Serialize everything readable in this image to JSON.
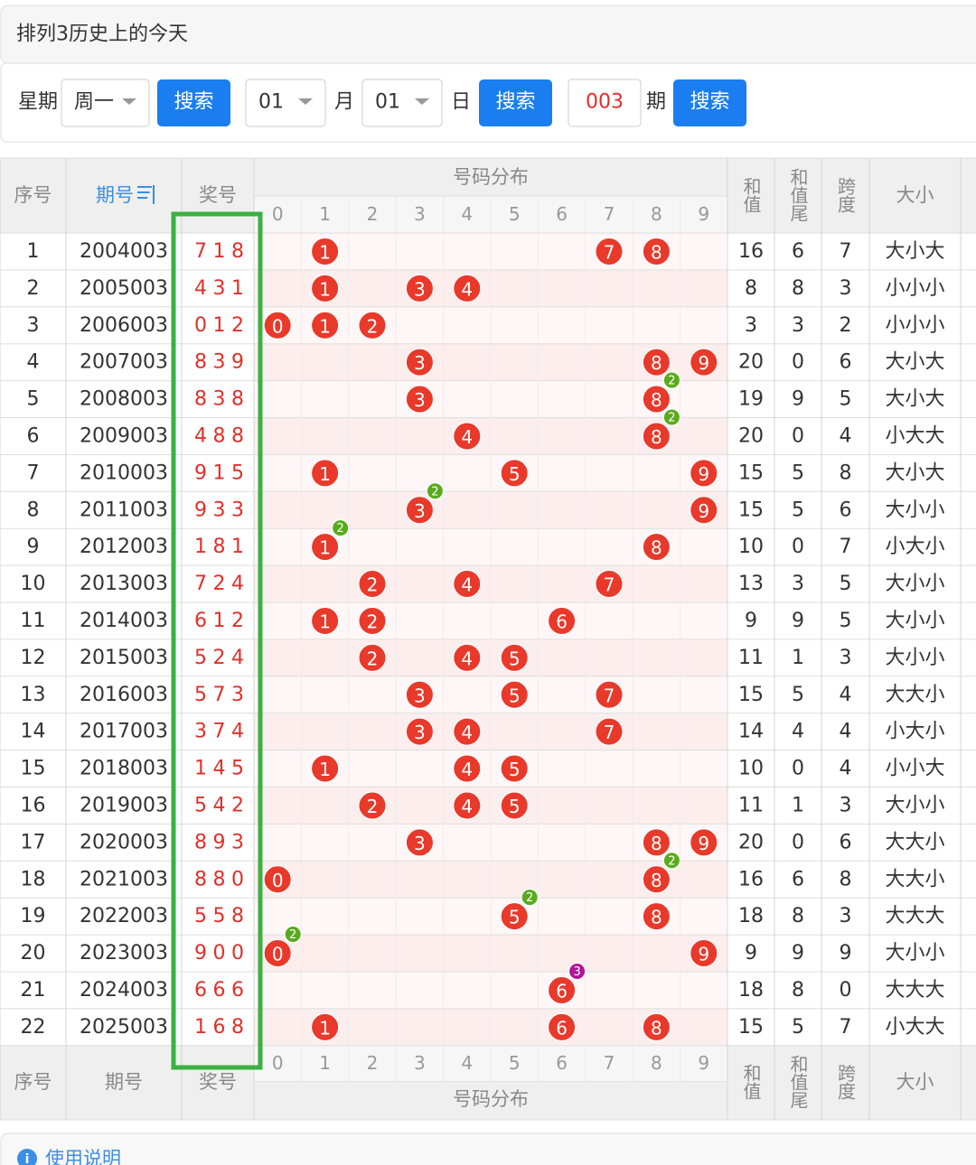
{
  "header": {
    "title": "排列3历史上的今天"
  },
  "search": {
    "weekday_label": "星期",
    "weekday": "周一",
    "month": "01",
    "month_label": "月",
    "day": "01",
    "day_label": "日",
    "issue": "003",
    "issue_label": "期",
    "buttons": [
      "搜索",
      "搜索",
      "搜索"
    ]
  },
  "table": {
    "columns": {
      "no": "序号",
      "issue": "期号",
      "prize": "奖号",
      "distribution": "号码分布",
      "digits": [
        0,
        1,
        2,
        3,
        4,
        5,
        6,
        7,
        8,
        9
      ],
      "sum": "和值",
      "sum_tail": "和值尾",
      "span": "跨度",
      "size": "大小"
    },
    "footer_columns": {
      "no": "序号",
      "issue": "期号",
      "prize": "奖号",
      "distribution": "号码分布",
      "digits": [
        0,
        1,
        2,
        3,
        4,
        5,
        6,
        7,
        8,
        9
      ],
      "sum": "和值",
      "sum_tail": "和值尾",
      "span": "跨度",
      "size": "大小"
    },
    "rows": [
      {
        "no": 1,
        "issue": "2004003",
        "prize": [
          7,
          1,
          8
        ],
        "sum": 16,
        "sum_tail": 6,
        "span": 7,
        "size": "大小大"
      },
      {
        "no": 2,
        "issue": "2005003",
        "prize": [
          4,
          3,
          1
        ],
        "sum": 8,
        "sum_tail": 8,
        "span": 3,
        "size": "小小小"
      },
      {
        "no": 3,
        "issue": "2006003",
        "prize": [
          0,
          1,
          2
        ],
        "sum": 3,
        "sum_tail": 3,
        "span": 2,
        "size": "小小小"
      },
      {
        "no": 4,
        "issue": "2007003",
        "prize": [
          8,
          3,
          9
        ],
        "sum": 20,
        "sum_tail": 0,
        "span": 6,
        "size": "大小大"
      },
      {
        "no": 5,
        "issue": "2008003",
        "prize": [
          8,
          3,
          8
        ],
        "sum": 19,
        "sum_tail": 9,
        "span": 5,
        "size": "大小大",
        "repeat": 2
      },
      {
        "no": 6,
        "issue": "2009003",
        "prize": [
          4,
          8,
          8
        ],
        "sum": 20,
        "sum_tail": 0,
        "span": 4,
        "size": "小大大",
        "repeat": 2
      },
      {
        "no": 7,
        "issue": "2010003",
        "prize": [
          9,
          1,
          5
        ],
        "sum": 15,
        "sum_tail": 5,
        "span": 8,
        "size": "大小大"
      },
      {
        "no": 8,
        "issue": "2011003",
        "prize": [
          9,
          3,
          3
        ],
        "sum": 15,
        "sum_tail": 5,
        "span": 6,
        "size": "大小小",
        "repeat": 2
      },
      {
        "no": 9,
        "issue": "2012003",
        "prize": [
          1,
          8,
          1
        ],
        "sum": 10,
        "sum_tail": 0,
        "span": 7,
        "size": "小大小",
        "repeat": 2
      },
      {
        "no": 10,
        "issue": "2013003",
        "prize": [
          7,
          2,
          4
        ],
        "sum": 13,
        "sum_tail": 3,
        "span": 5,
        "size": "大小小"
      },
      {
        "no": 11,
        "issue": "2014003",
        "prize": [
          6,
          1,
          2
        ],
        "sum": 9,
        "sum_tail": 9,
        "span": 5,
        "size": "大小小"
      },
      {
        "no": 12,
        "issue": "2015003",
        "prize": [
          5,
          2,
          4
        ],
        "sum": 11,
        "sum_tail": 1,
        "span": 3,
        "size": "大小小"
      },
      {
        "no": 13,
        "issue": "2016003",
        "prize": [
          5,
          7,
          3
        ],
        "sum": 15,
        "sum_tail": 5,
        "span": 4,
        "size": "大大小"
      },
      {
        "no": 14,
        "issue": "2017003",
        "prize": [
          3,
          7,
          4
        ],
        "sum": 14,
        "sum_tail": 4,
        "span": 4,
        "size": "小大小"
      },
      {
        "no": 15,
        "issue": "2018003",
        "prize": [
          1,
          4,
          5
        ],
        "sum": 10,
        "sum_tail": 0,
        "span": 4,
        "size": "小小大"
      },
      {
        "no": 16,
        "issue": "2019003",
        "prize": [
          5,
          4,
          2
        ],
        "sum": 11,
        "sum_tail": 1,
        "span": 3,
        "size": "大小小"
      },
      {
        "no": 17,
        "issue": "2020003",
        "prize": [
          8,
          9,
          3
        ],
        "sum": 20,
        "sum_tail": 0,
        "span": 6,
        "size": "大大小"
      },
      {
        "no": 18,
        "issue": "2021003",
        "prize": [
          8,
          8,
          0
        ],
        "sum": 16,
        "sum_tail": 6,
        "span": 8,
        "size": "大大小",
        "repeat": 2
      },
      {
        "no": 19,
        "issue": "2022003",
        "prize": [
          5,
          5,
          8
        ],
        "sum": 18,
        "sum_tail": 8,
        "span": 3,
        "size": "大大大",
        "repeat": 2
      },
      {
        "no": 20,
        "issue": "2023003",
        "prize": [
          9,
          0,
          0
        ],
        "sum": 9,
        "sum_tail": 9,
        "span": 9,
        "size": "大小小",
        "repeat": 2
      },
      {
        "no": 21,
        "issue": "2024003",
        "prize": [
          6,
          6,
          6
        ],
        "sum": 18,
        "sum_tail": 8,
        "span": 0,
        "size": "大大大",
        "repeat": 3
      },
      {
        "no": 22,
        "issue": "2025003",
        "prize": [
          1,
          6,
          8
        ],
        "sum": 15,
        "sum_tail": 5,
        "span": 7,
        "size": "小大大"
      }
    ]
  },
  "footer": {
    "help": "使用说明"
  }
}
